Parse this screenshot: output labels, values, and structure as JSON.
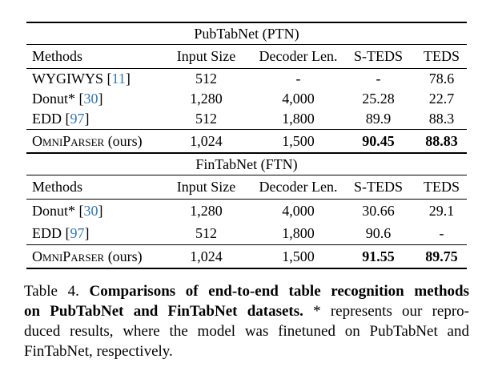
{
  "colors": {
    "background": "#ffffff",
    "text": "#000000",
    "rule": "#000000",
    "citation_blue": "#3478b6"
  },
  "table4": {
    "sections": [
      {
        "title": "PubTabNet (PTN)",
        "columns": [
          "Methods",
          "Input Size",
          "Decoder Len.",
          "S-TEDS",
          "TEDS"
        ],
        "rows": [
          {
            "method": "WYGIWYS",
            "cite": "11",
            "values": [
              "512",
              "-",
              "-",
              "78.6"
            ]
          },
          {
            "method": "Donut*",
            "cite": "30",
            "values": [
              "1,280",
              "4,000",
              "25.28",
              "22.7"
            ]
          },
          {
            "method": "EDD",
            "cite": "97",
            "values": [
              "512",
              "1,800",
              "89.9",
              "88.3"
            ]
          }
        ],
        "ours_row": {
          "method": "OmniParser",
          "method_suffix": " (ours)",
          "values": [
            "1,024",
            "1,500",
            "90.45",
            "88.83"
          ],
          "bold_from": 2
        }
      },
      {
        "title": "FinTabNet (FTN)",
        "columns": [
          "Methods",
          "Input Size",
          "Decoder Len.",
          "S-TEDS",
          "TEDS"
        ],
        "rows": [
          {
            "method": "Donut*",
            "cite": "30",
            "values": [
              "1,280",
              "4,000",
              "30.66",
              "29.1"
            ]
          },
          {
            "method": "EDD",
            "cite": "97",
            "values": [
              "512",
              "1,800",
              "90.6",
              "-"
            ]
          }
        ],
        "ours_row": {
          "method": "OmniParser",
          "method_suffix": " (ours)",
          "values": [
            "1,024",
            "1,500",
            "91.55",
            "89.75"
          ],
          "bold_from": 2
        }
      }
    ]
  },
  "caption": {
    "lines": [
      {
        "justify": true,
        "segments": [
          {
            "text": "Table 4. ",
            "bold": false
          },
          {
            "text": "Comparisons of end-to-end table recognition methods",
            "bold": true
          }
        ]
      },
      {
        "justify": true,
        "segments": [
          {
            "text": "on PubTabNet and FinTabNet datasets.",
            "bold": true
          },
          {
            "text": " * represents our repro-",
            "bold": false
          }
        ]
      },
      {
        "justify": true,
        "segments": [
          {
            "text": "duced results, where the model was finetuned on PubTabNet and",
            "bold": false
          }
        ]
      },
      {
        "justify": false,
        "segments": [
          {
            "text": "FinTabNet, respectively.",
            "bold": false
          }
        ]
      }
    ]
  }
}
